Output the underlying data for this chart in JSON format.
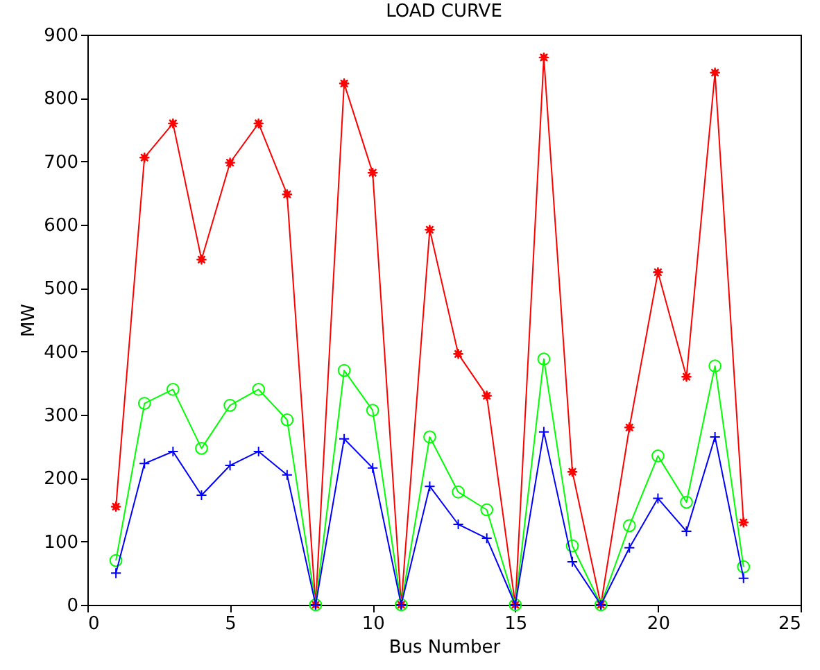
{
  "chart_data": {
    "type": "line",
    "title": "LOAD CURVE",
    "xlabel": "Bus Number",
    "ylabel": "MW",
    "x": [
      1,
      2,
      3,
      4,
      5,
      6,
      7,
      8,
      9,
      10,
      11,
      12,
      13,
      14,
      15,
      16,
      17,
      18,
      19,
      20,
      21,
      22,
      23
    ],
    "series": [
      {
        "color": "#ff0000",
        "marker": "star",
        "values": [
          155,
          706,
          760,
          545,
          698,
          760,
          648,
          0,
          823,
          682,
          0,
          592,
          396,
          330,
          0,
          864,
          210,
          0,
          280,
          525,
          360,
          840,
          130
        ]
      },
      {
        "color": "#00ff00",
        "marker": "circle",
        "values": [
          70,
          318,
          340,
          247,
          315,
          340,
          292,
          0,
          370,
          307,
          0,
          265,
          178,
          150,
          0,
          388,
          93,
          0,
          125,
          235,
          162,
          377,
          60
        ]
      },
      {
        "color": "#0000ff",
        "marker": "cross",
        "values": [
          50,
          223,
          242,
          173,
          220,
          242,
          205,
          0,
          262,
          216,
          0,
          187,
          127,
          105,
          0,
          273,
          68,
          0,
          90,
          168,
          116,
          265,
          42
        ]
      }
    ],
    "xlim": [
      0,
      25
    ],
    "xticks": [
      0,
      5,
      10,
      15,
      20,
      25
    ],
    "ylim": [
      0,
      900
    ],
    "yticks": [
      0,
      100,
      200,
      300,
      400,
      500,
      600,
      700,
      800,
      900
    ],
    "grid": false,
    "line_style": "solid"
  }
}
